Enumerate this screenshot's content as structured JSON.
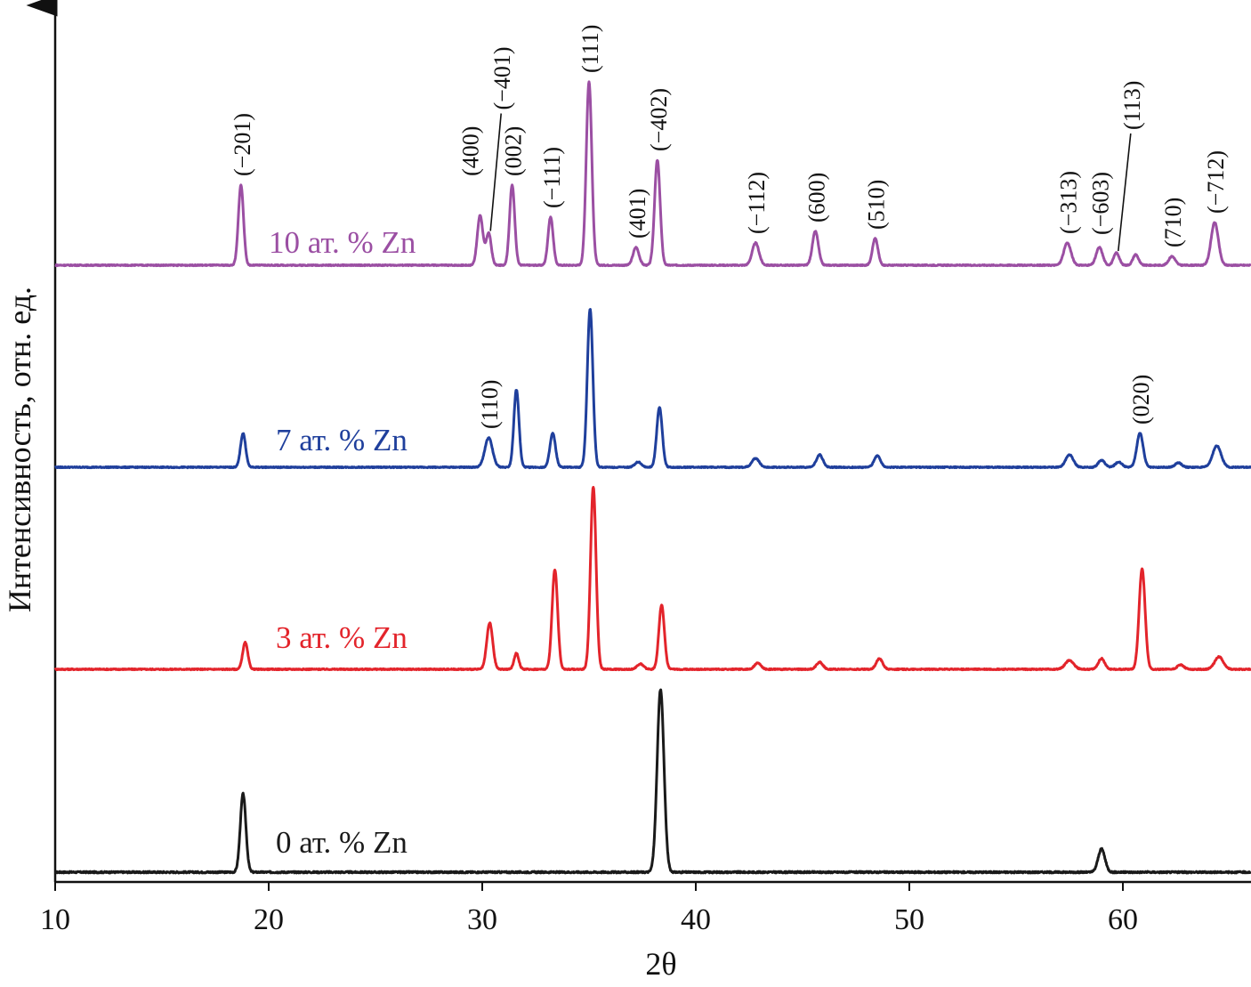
{
  "chart_data": {
    "type": "line",
    "xlabel": "2θ",
    "ylabel": "Интенсивность, отн. ед.",
    "xlim": [
      10,
      66
    ],
    "xticks": [
      10,
      20,
      30,
      40,
      50,
      60
    ],
    "yticks": [],
    "grid": false,
    "series": [
      {
        "name": "0 ат. % Zn",
        "color": "#1a1a1a",
        "baseline": 0,
        "noise": 0.9,
        "peaks": [
          {
            "x": 18.8,
            "h": 88,
            "w": 0.13
          },
          {
            "x": 38.35,
            "h": 205,
            "w": 0.16
          },
          {
            "x": 59.0,
            "h": 26,
            "w": 0.16
          }
        ]
      },
      {
        "name": "3 ат. % Zn",
        "color": "#e3242b",
        "baseline": 228,
        "noise": 0.6,
        "peaks": [
          {
            "x": 18.9,
            "h": 30,
            "w": 0.12
          },
          {
            "x": 30.35,
            "h": 52,
            "w": 0.14
          },
          {
            "x": 31.6,
            "h": 18,
            "w": 0.11
          },
          {
            "x": 33.4,
            "h": 112,
            "w": 0.13
          },
          {
            "x": 35.2,
            "h": 205,
            "w": 0.13
          },
          {
            "x": 37.4,
            "h": 6,
            "w": 0.15
          },
          {
            "x": 38.4,
            "h": 72,
            "w": 0.13
          },
          {
            "x": 42.9,
            "h": 7,
            "w": 0.15
          },
          {
            "x": 45.8,
            "h": 8,
            "w": 0.15
          },
          {
            "x": 48.6,
            "h": 12,
            "w": 0.15
          },
          {
            "x": 57.5,
            "h": 10,
            "w": 0.2
          },
          {
            "x": 59.0,
            "h": 12,
            "w": 0.15
          },
          {
            "x": 60.9,
            "h": 113,
            "w": 0.14
          },
          {
            "x": 62.7,
            "h": 5,
            "w": 0.15
          },
          {
            "x": 64.5,
            "h": 14,
            "w": 0.2
          }
        ]
      },
      {
        "name": "7 ат. % Zn",
        "color": "#1f3f9c",
        "baseline": 455,
        "noise": 0.6,
        "peaks": [
          {
            "x": 18.8,
            "h": 38,
            "w": 0.12
          },
          {
            "x": 30.3,
            "h": 33,
            "w": 0.18
          },
          {
            "x": 31.6,
            "h": 87,
            "w": 0.12
          },
          {
            "x": 33.3,
            "h": 38,
            "w": 0.13
          },
          {
            "x": 35.05,
            "h": 178,
            "w": 0.13
          },
          {
            "x": 37.3,
            "h": 6,
            "w": 0.15
          },
          {
            "x": 38.3,
            "h": 67,
            "w": 0.13
          },
          {
            "x": 42.8,
            "h": 10,
            "w": 0.17
          },
          {
            "x": 45.8,
            "h": 14,
            "w": 0.15
          },
          {
            "x": 48.5,
            "h": 13,
            "w": 0.15
          },
          {
            "x": 57.5,
            "h": 14,
            "w": 0.18
          },
          {
            "x": 59.0,
            "h": 8,
            "w": 0.15
          },
          {
            "x": 59.8,
            "h": 6,
            "w": 0.15
          },
          {
            "x": 60.8,
            "h": 38,
            "w": 0.15
          },
          {
            "x": 62.6,
            "h": 5,
            "w": 0.15
          },
          {
            "x": 64.4,
            "h": 24,
            "w": 0.2
          }
        ]
      },
      {
        "name": "10 ат. % Zn",
        "color": "#9b4fa3",
        "baseline": 682,
        "noise": 0.6,
        "peaks": [
          {
            "x": 18.7,
            "h": 90,
            "w": 0.12
          },
          {
            "x": 29.9,
            "h": 56,
            "w": 0.13
          },
          {
            "x": 30.3,
            "h": 36,
            "w": 0.12
          },
          {
            "x": 31.4,
            "h": 90,
            "w": 0.12
          },
          {
            "x": 33.2,
            "h": 54,
            "w": 0.12
          },
          {
            "x": 35.0,
            "h": 206,
            "w": 0.13
          },
          {
            "x": 37.2,
            "h": 20,
            "w": 0.14
          },
          {
            "x": 38.2,
            "h": 118,
            "w": 0.13
          },
          {
            "x": 42.8,
            "h": 25,
            "w": 0.16
          },
          {
            "x": 45.6,
            "h": 38,
            "w": 0.14
          },
          {
            "x": 48.4,
            "h": 30,
            "w": 0.13
          },
          {
            "x": 57.4,
            "h": 25,
            "w": 0.17
          },
          {
            "x": 58.9,
            "h": 20,
            "w": 0.15
          },
          {
            "x": 59.7,
            "h": 14,
            "w": 0.13
          },
          {
            "x": 60.6,
            "h": 12,
            "w": 0.13
          },
          {
            "x": 62.3,
            "h": 10,
            "w": 0.15
          },
          {
            "x": 64.3,
            "h": 48,
            "w": 0.17
          }
        ]
      }
    ],
    "peak_labels": [
      {
        "text": "(−201)",
        "x": 18.7,
        "series": 3
      },
      {
        "text": "(400)",
        "x": 29.9,
        "series": 3
      },
      {
        "text": "(−401)",
        "x": 30.3,
        "series": 3
      },
      {
        "text": "(002)",
        "x": 31.4,
        "series": 3
      },
      {
        "text": "(−111)",
        "x": 33.2,
        "series": 3
      },
      {
        "text": "(111)",
        "x": 35.0,
        "series": 3
      },
      {
        "text": "(401)",
        "x": 37.2,
        "series": 3
      },
      {
        "text": "(−402)",
        "x": 38.2,
        "series": 3
      },
      {
        "text": "(−112)",
        "x": 42.8,
        "series": 3
      },
      {
        "text": "(600)",
        "x": 45.6,
        "series": 3
      },
      {
        "text": "(510)",
        "x": 48.4,
        "series": 3
      },
      {
        "text": "(−313)",
        "x": 57.4,
        "series": 3
      },
      {
        "text": "(−603)",
        "x": 58.9,
        "series": 3
      },
      {
        "text": "(113)",
        "x": 59.7,
        "series": 3
      },
      {
        "text": "(710)",
        "x": 62.3,
        "series": 3
      },
      {
        "text": "(−712)",
        "x": 64.3,
        "series": 3
      },
      {
        "text": "(110)",
        "x": 30.3,
        "series": 2
      },
      {
        "text": "(020)",
        "x": 60.8,
        "series": 2
      }
    ]
  }
}
